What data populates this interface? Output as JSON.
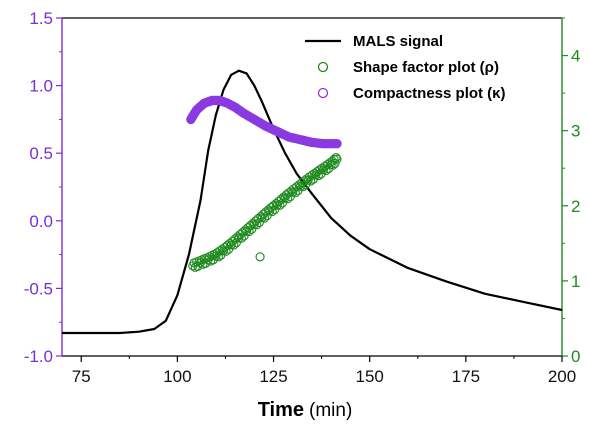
{
  "chart_data": {
    "type": "scatter",
    "xlabel_name": "Time",
    "xlabel_unit": "(min)",
    "xlim": [
      70,
      200
    ],
    "x_ticks": [
      "75",
      "100",
      "125",
      "150",
      "175",
      "200"
    ],
    "y_left": {
      "lim": [
        -1.0,
        1.5
      ],
      "ticks": [
        "-1.0",
        "-0.5",
        "0.0",
        "0.5",
        "1.0",
        "1.5"
      ],
      "color": "#7a2fd6"
    },
    "y_right": {
      "lim": [
        0,
        4.5
      ],
      "ticks": [
        "0",
        "1",
        "2",
        "3",
        "4"
      ],
      "color": "#1f8a1f"
    },
    "legend_position": "top-right",
    "series": [
      {
        "name": "MALS signal",
        "kind": "line",
        "axis": "left",
        "color": "#000000",
        "x": [
          70,
          85,
          90,
          94,
          97,
          100,
          103,
          106,
          108,
          110,
          112,
          114,
          116,
          118,
          120,
          122,
          125,
          128,
          131,
          135,
          140,
          145,
          150,
          160,
          170,
          180,
          190,
          200
        ],
        "y": [
          -0.83,
          -0.83,
          -0.82,
          -0.8,
          -0.74,
          -0.55,
          -0.25,
          0.15,
          0.52,
          0.78,
          0.97,
          1.08,
          1.11,
          1.09,
          1.0,
          0.88,
          0.68,
          0.5,
          0.35,
          0.2,
          0.02,
          -0.11,
          -0.21,
          -0.35,
          -0.45,
          -0.54,
          -0.6,
          -0.66
        ]
      },
      {
        "name": "Shape factor plot (ρ)",
        "kind": "scatter",
        "axis": "right",
        "color": "#1f8a1f",
        "x": [
          104,
          106,
          108,
          110,
          112,
          114,
          116,
          118,
          120,
          122,
          124,
          126,
          128,
          130,
          132,
          134,
          136,
          138,
          140,
          141.5,
          121.5
        ],
        "y": [
          1.2,
          1.24,
          1.28,
          1.33,
          1.4,
          1.48,
          1.57,
          1.66,
          1.75,
          1.84,
          1.93,
          2.01,
          2.1,
          2.18,
          2.26,
          2.34,
          2.41,
          2.48,
          2.55,
          2.62,
          1.32
        ]
      },
      {
        "name": "Compactness plot (κ)",
        "kind": "scatter",
        "axis": "left",
        "color": "#8a3ae0",
        "x": [
          103.5,
          105,
          107,
          109,
          111,
          113,
          115,
          117,
          120,
          123,
          126,
          129,
          132,
          135,
          138,
          141.5
        ],
        "y": [
          0.75,
          0.82,
          0.87,
          0.89,
          0.89,
          0.87,
          0.84,
          0.8,
          0.75,
          0.7,
          0.66,
          0.62,
          0.6,
          0.58,
          0.57,
          0.57
        ]
      }
    ]
  }
}
